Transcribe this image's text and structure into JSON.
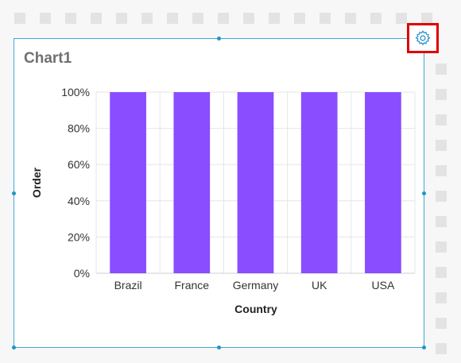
{
  "widget": {
    "title": "Chart1"
  },
  "toolbar": {
    "settings_icon": "gear-icon"
  },
  "colors": {
    "bar": "#8a4dff",
    "selection_border": "#3fa9d6",
    "handle": "#1f95c9",
    "settings_highlight": "#e00000"
  },
  "chart_data": {
    "type": "bar",
    "title": "",
    "xlabel": "Country",
    "ylabel": "Order",
    "categories": [
      "Brazil",
      "France",
      "Germany",
      "UK",
      "USA"
    ],
    "values": [
      100,
      100,
      100,
      100,
      100
    ],
    "ylim": [
      0,
      100
    ],
    "yticks": [
      "0%",
      "20%",
      "40%",
      "60%",
      "80%",
      "100%"
    ],
    "grid": true,
    "legend": "none"
  }
}
